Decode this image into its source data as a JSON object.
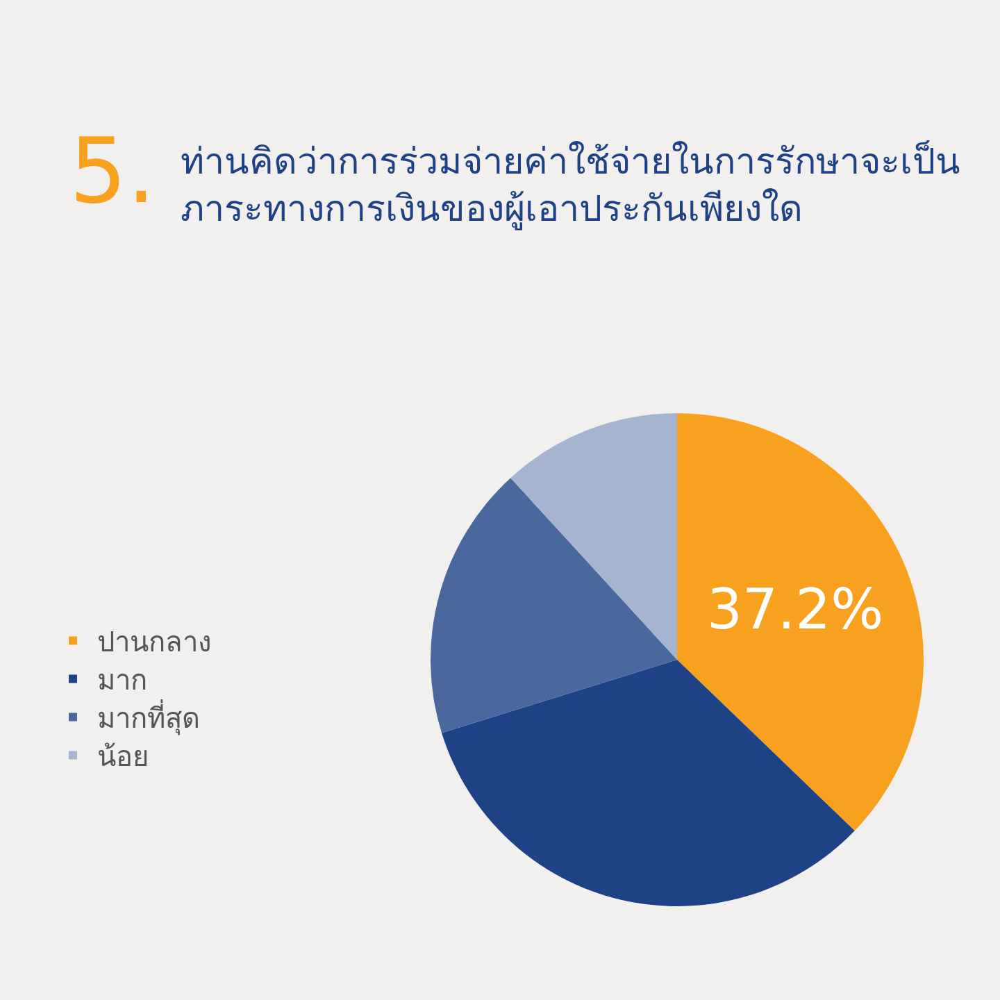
{
  "chart_data": {
    "type": "pie",
    "title": "5.",
    "subtitle": "ท่านคิดว่าการร่วมจ่ายค่าใช้จ่ายในการรักษาจะเป็น\nภาระทางการเงินของผู้เอาประกันเพียงใด",
    "categories": [
      "ปานกลาง",
      "มาก",
      "มากที่สุด",
      "น้อย"
    ],
    "values": [
      37.2,
      33.0,
      18.0,
      11.8
    ],
    "colors": [
      "#f8a11e",
      "#1f4287",
      "#4b689e",
      "#a5b4cf"
    ],
    "value_labels": [
      "37.2%",
      null,
      null,
      null
    ],
    "legend": "left"
  }
}
